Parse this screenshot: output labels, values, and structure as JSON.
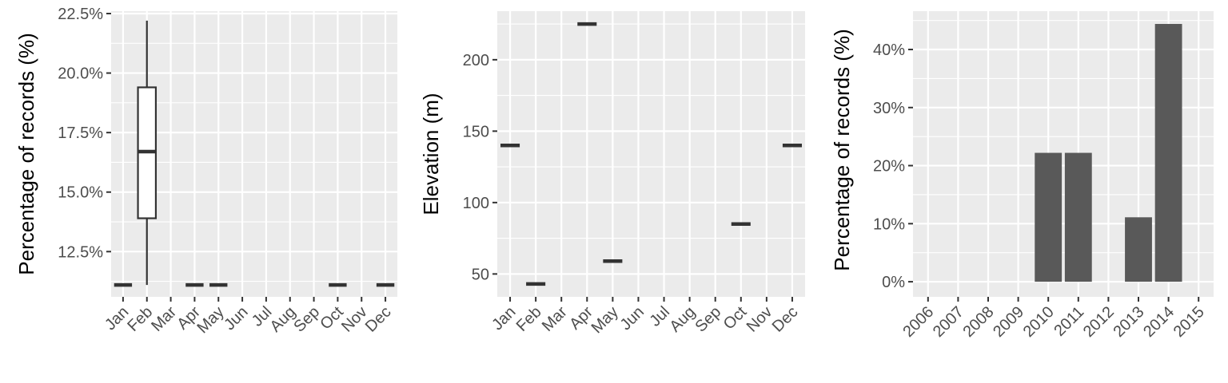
{
  "chart_data": [
    {
      "type": "box",
      "ylabel": "Percentage of records (%)",
      "categories": [
        "Jan",
        "Feb",
        "Mar",
        "Apr",
        "May",
        "Jun",
        "Jul",
        "Aug",
        "Sep",
        "Oct",
        "Nov",
        "Dec"
      ],
      "yticks": [
        12.5,
        15.0,
        17.5,
        20.0,
        22.5
      ],
      "ytick_labels": [
        "12.5%",
        "15.0%",
        "17.5%",
        "20.0%",
        "22.5%"
      ],
      "ylim": [
        10.6,
        22.6
      ],
      "boxes": [
        {
          "category": "Jan",
          "min": 11.1,
          "q1": 11.1,
          "median": 11.1,
          "q3": 11.1,
          "max": 11.1
        },
        {
          "category": "Feb",
          "min": 11.1,
          "q1": 13.9,
          "median": 16.7,
          "q3": 19.4,
          "max": 22.2
        },
        {
          "category": "Apr",
          "min": 11.1,
          "q1": 11.1,
          "median": 11.1,
          "q3": 11.1,
          "max": 11.1
        },
        {
          "category": "May",
          "min": 11.1,
          "q1": 11.1,
          "median": 11.1,
          "q3": 11.1,
          "max": 11.1
        },
        {
          "category": "Oct",
          "min": 11.1,
          "q1": 11.1,
          "median": 11.1,
          "q3": 11.1,
          "max": 11.1
        },
        {
          "category": "Dec",
          "min": 11.1,
          "q1": 11.1,
          "median": 11.1,
          "q3": 11.1,
          "max": 11.1
        }
      ]
    },
    {
      "type": "box",
      "ylabel": "Elevation (m)",
      "categories": [
        "Jan",
        "Feb",
        "Mar",
        "Apr",
        "May",
        "Jun",
        "Jul",
        "Aug",
        "Sep",
        "Oct",
        "Nov",
        "Dec"
      ],
      "yticks": [
        50,
        100,
        150,
        200
      ],
      "ytick_labels": [
        "50",
        "100",
        "150",
        "200"
      ],
      "ylim": [
        34,
        234
      ],
      "boxes": [
        {
          "category": "Jan",
          "min": 140,
          "q1": 140,
          "median": 140,
          "q3": 140,
          "max": 140
        },
        {
          "category": "Feb",
          "min": 43,
          "q1": 43,
          "median": 43,
          "q3": 43,
          "max": 43
        },
        {
          "category": "Apr",
          "min": 225,
          "q1": 225,
          "median": 225,
          "q3": 225,
          "max": 225
        },
        {
          "category": "May",
          "min": 59,
          "q1": 59,
          "median": 59,
          "q3": 59,
          "max": 59
        },
        {
          "category": "Oct",
          "min": 85,
          "q1": 85,
          "median": 85,
          "q3": 85,
          "max": 85
        },
        {
          "category": "Dec",
          "min": 140,
          "q1": 140,
          "median": 140,
          "q3": 140,
          "max": 140
        }
      ]
    },
    {
      "type": "bar",
      "ylabel": "Percentage of records (%)",
      "categories": [
        "2006",
        "2007",
        "2008",
        "2009",
        "2010",
        "2011",
        "2012",
        "2013",
        "2014",
        "2015"
      ],
      "values": [
        0,
        0,
        0,
        0,
        22.2,
        22.2,
        0,
        11.1,
        44.4,
        0
      ],
      "yticks": [
        0,
        10,
        20,
        30,
        40
      ],
      "ytick_labels": [
        "0%",
        "10%",
        "20%",
        "30%",
        "40%"
      ],
      "ylim": [
        -2.6,
        46.6
      ],
      "bar_color": "#595959"
    }
  ]
}
